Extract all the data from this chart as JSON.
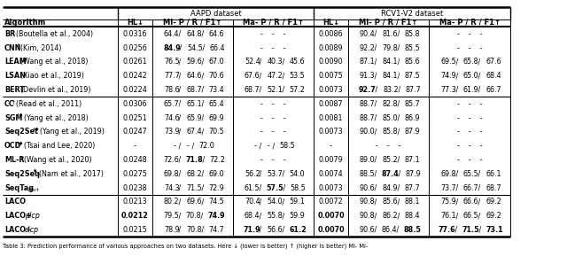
{
  "rows": [
    {
      "algo": "BR",
      "algo_sup": "†",
      "algo_rest": "(Boutella et al., 2004)",
      "aapd_hl": "0.0316",
      "aapd_mi": [
        "64.4",
        "64.8",
        "64.6"
      ],
      "aapd_ma": [
        "-",
        "-",
        "-"
      ],
      "rcv_hl": "0.0086",
      "rcv_mi": [
        "90.4",
        "81.6",
        "85.8"
      ],
      "rcv_ma": [
        "-",
        "-",
        "-"
      ],
      "group": 1
    },
    {
      "algo": "CNN",
      "algo_sup": "†",
      "algo_rest": "(Kim, 2014)",
      "aapd_hl": "0.0256",
      "aapd_mi": [
        "84.9",
        "54.5",
        "66.4"
      ],
      "aapd_ma": [
        "-",
        "-",
        "-"
      ],
      "rcv_hl": "0.0089",
      "rcv_mi": [
        "92.2",
        "79.8",
        "85.5"
      ],
      "rcv_ma": [
        "-",
        "-",
        "-"
      ],
      "group": 1
    },
    {
      "algo": "LEAM",
      "algo_sup": "",
      "algo_rest": "(Wang et al., 2018)",
      "aapd_hl": "0.0261",
      "aapd_mi": [
        "76.5",
        "59.6",
        "67.0"
      ],
      "aapd_ma": [
        "52.4",
        "40.3",
        "45.6"
      ],
      "rcv_hl": "0.0090",
      "rcv_mi": [
        "87.1",
        "84.1",
        "85.6"
      ],
      "rcv_ma": [
        "69.5",
        "65.8",
        "67.6"
      ],
      "group": 1
    },
    {
      "algo": "LSAN",
      "algo_sup": "",
      "algo_rest": "(Xiao et al., 2019)",
      "aapd_hl": "0.0242",
      "aapd_mi": [
        "77.7",
        "64.6",
        "70.6"
      ],
      "aapd_ma": [
        "67.6",
        "47.2",
        "53.5"
      ],
      "rcv_hl": "0.0075",
      "rcv_mi": [
        "91.3",
        "84.1",
        "87.5"
      ],
      "rcv_ma": [
        "74.9",
        "65.0",
        "68.4"
      ],
      "group": 1
    },
    {
      "algo": "BERT",
      "algo_sup": "",
      "algo_rest": "(Devlin et al., 2019)",
      "aapd_hl": "0.0224",
      "aapd_mi": [
        "78.6",
        "68.7",
        "73.4"
      ],
      "aapd_ma": [
        "68.7",
        "52.1",
        "57.2"
      ],
      "rcv_hl": "0.0073",
      "rcv_mi": [
        "92.7",
        "83.2",
        "87.7"
      ],
      "rcv_ma": [
        "77.3",
        "61.9",
        "66.7"
      ],
      "group": 1
    },
    {
      "algo": "CC",
      "algo_sup": "†",
      "algo_rest": "(Read et al., 2011)",
      "aapd_hl": "0.0306",
      "aapd_mi": [
        "65.7",
        "65.1",
        "65.4"
      ],
      "aapd_ma": [
        "-",
        "-",
        "-"
      ],
      "rcv_hl": "0.0087",
      "rcv_mi": [
        "88.7",
        "82.8",
        "85.7"
      ],
      "rcv_ma": [
        "-",
        "-",
        "-"
      ],
      "group": 2
    },
    {
      "algo": "SGM",
      "algo_sup": "†♦",
      "algo_rest": "(Yang et al., 2018)",
      "aapd_hl": "0.0251",
      "aapd_mi": [
        "74.6",
        "65.9",
        "69.9"
      ],
      "aapd_ma": [
        "-",
        "-",
        "-"
      ],
      "rcv_hl": "0.0081",
      "rcv_mi": [
        "88.7",
        "85.0",
        "86.9"
      ],
      "rcv_ma": [
        "-",
        "-",
        "-"
      ],
      "group": 2
    },
    {
      "algo": "Seq2Set",
      "algo_sup": "†♦",
      "algo_rest": "(Yang et al., 2019)",
      "aapd_hl": "0.0247",
      "aapd_mi": [
        "73.9",
        "67.4",
        "70.5"
      ],
      "aapd_ma": [
        "-",
        "-",
        "-"
      ],
      "rcv_hl": "0.0073",
      "rcv_mi": [
        "90.0",
        "85.8",
        "87.9"
      ],
      "rcv_ma": [
        "-",
        "-",
        "-"
      ],
      "group": 2
    },
    {
      "algo": "OCD",
      "algo_sup": "†♦",
      "algo_rest": "(Tsai and Lee, 2020)",
      "aapd_hl": "-",
      "aapd_mi": [
        "-",
        "-",
        "72.0"
      ],
      "aapd_ma": [
        "-",
        "-",
        "58.5"
      ],
      "rcv_hl": "-",
      "rcv_mi": [
        "-",
        "-",
        "-"
      ],
      "rcv_ma": [
        "-",
        "-",
        "-"
      ],
      "group": 2
    },
    {
      "algo": "ML-R",
      "algo_sup": "†",
      "algo_rest": "(Wang et al., 2020)",
      "aapd_hl": "0.0248",
      "aapd_mi": [
        "72.6",
        "71.8",
        "72.2"
      ],
      "aapd_ma": [
        "-",
        "-",
        "-"
      ],
      "rcv_hl": "0.0079",
      "rcv_mi": [
        "89.0",
        "85.2",
        "87.1"
      ],
      "rcv_ma": [
        "-",
        "-",
        "-"
      ],
      "group": 2
    },
    {
      "algo": "Seq2Seq",
      "algo_sup": "♦",
      "algo_rest": "(Nam et al., 2017)",
      "algo_sub": "T",
      "aapd_hl": "0.0275",
      "aapd_mi": [
        "69.8",
        "68.2",
        "69.0"
      ],
      "aapd_ma": [
        "56.2",
        "53.7",
        "54.0"
      ],
      "rcv_hl": "0.0074",
      "rcv_mi": [
        "88.5",
        "87.4",
        "87.9"
      ],
      "rcv_ma": [
        "69.8",
        "65.5",
        "66.1"
      ],
      "group": 2
    },
    {
      "algo": "SeqTag",
      "algo_sup": "",
      "algo_rest": "",
      "algo_sub": "Bert",
      "algo_sub_italic": true,
      "aapd_hl": "0.0238",
      "aapd_mi": [
        "74.3",
        "71.5",
        "72.9"
      ],
      "aapd_ma": [
        "61.5",
        "57.5",
        "58.5"
      ],
      "rcv_hl": "0.0073",
      "rcv_mi": [
        "90.6",
        "84.9",
        "87.7"
      ],
      "rcv_ma": [
        "73.7",
        "66.7",
        "68.7"
      ],
      "group": 2
    },
    {
      "algo": "LACO",
      "algo_sup": "",
      "algo_rest": "",
      "aapd_hl": "0.0213",
      "aapd_mi": [
        "80.2",
        "69.6",
        "74.5"
      ],
      "aapd_ma": [
        "70.4",
        "54.0",
        "59.1"
      ],
      "rcv_hl": "0.0072",
      "rcv_mi": [
        "90.8",
        "85.6",
        "88.1"
      ],
      "rcv_ma": [
        "75.9",
        "66.6",
        "69.2"
      ],
      "group": 3
    },
    {
      "algo": "LACO+plcp",
      "algo_sup": "",
      "algo_rest": "",
      "algo_italic_part": "plcp",
      "aapd_hl": "0.0212",
      "aapd_mi": [
        "79.5",
        "70.8",
        "74.9"
      ],
      "aapd_ma": [
        "68.4",
        "55.8",
        "59.9"
      ],
      "rcv_hl": "0.0070",
      "rcv_mi": [
        "90.8",
        "86.2",
        "88.4"
      ],
      "rcv_ma": [
        "76.1",
        "66.5",
        "69.2"
      ],
      "group": 3
    },
    {
      "algo": "LACO+clcp",
      "algo_sup": "",
      "algo_rest": "",
      "algo_italic_part": "clcp",
      "aapd_hl": "0.0215",
      "aapd_mi": [
        "78.9",
        "70.8",
        "74.7"
      ],
      "aapd_ma": [
        "71.9",
        "56.6",
        "61.2"
      ],
      "rcv_hl": "0.0070",
      "rcv_mi": [
        "90.6",
        "86.4",
        "88.5"
      ],
      "rcv_ma": [
        "77.6",
        "71.5",
        "73.1"
      ],
      "group": 3
    }
  ],
  "bold": {
    "CNN_aapd_mi_0": true,
    "BERT_rcv_mi_0": true,
    "ML-R_aapd_mi_1": true,
    "Seq2Seq_rcv_mi_1": true,
    "SeqTag_aapd_ma_1": true,
    "LACO+plcp_aapd_hl": true,
    "LACO+plcp_aapd_mi_2": true,
    "LACO+clcp_aapd_ma_0": true,
    "LACO+clcp_aapd_ma_2": true,
    "LACO+plcp_rcv_hl": true,
    "LACO+clcp_rcv_hl": true,
    "LACO+clcp_rcv_mi_2": true,
    "LACO+clcp_rcv_ma_0": true,
    "LACO+clcp_rcv_ma_1": true,
    "LACO+clcp_rcv_ma_2": true
  },
  "caption": "Table 3: Prediction performance of various approaches on two datasets. Here ↓ (lower is better) ↑ (higher is better) Mi- Mi-"
}
